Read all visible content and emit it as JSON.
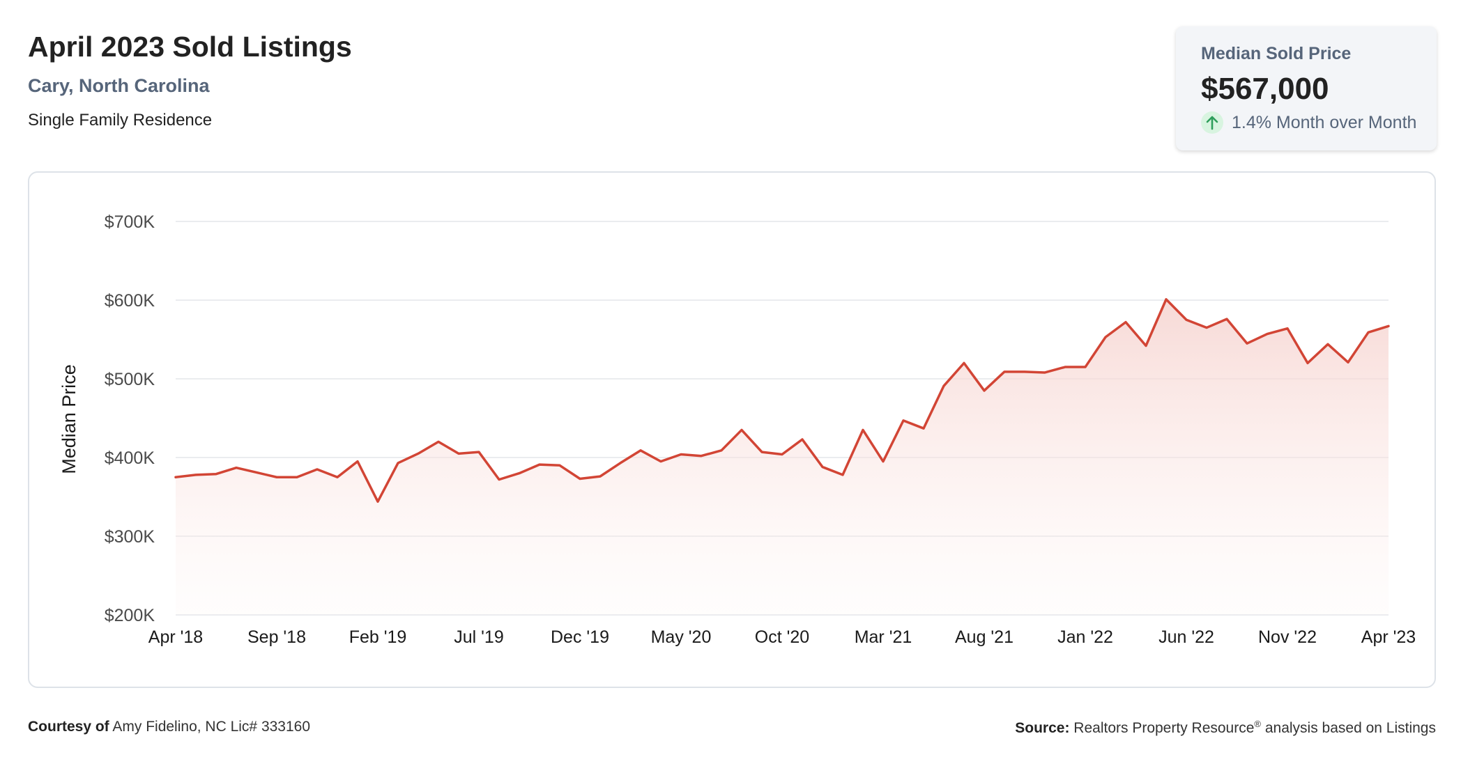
{
  "header": {
    "title": "April 2023 Sold Listings",
    "subtitle": "Cary, North Carolina",
    "property_type": "Single Family Residence"
  },
  "stat_card": {
    "label": "Median Sold Price",
    "value": "$567,000",
    "change": "1.4% Month over Month",
    "change_direction": "up",
    "change_icon": "arrow-up-icon",
    "change_color": "#2e9e5b"
  },
  "footer": {
    "courtesy_label": "Courtesy of",
    "courtesy_text": "Amy Fidelino, NC Lic# 333160",
    "source_label": "Source:",
    "source_text_1": "Realtors Property Resource",
    "source_mark": "®",
    "source_text_2": " analysis based on Listings"
  },
  "colors": {
    "line": "#d24535",
    "fill_top": "#f6d3cf",
    "gridline": "#e3e6ea",
    "axis_text": "#4a4a4a"
  },
  "chart_data": {
    "type": "area",
    "ylabel": "Median Price",
    "xlabel": "",
    "ylim": [
      200000,
      700000
    ],
    "y_ticks": [
      {
        "value": 700000,
        "label": "$700K"
      },
      {
        "value": 600000,
        "label": "$600K"
      },
      {
        "value": 500000,
        "label": "$500K"
      },
      {
        "value": 400000,
        "label": "$400K"
      },
      {
        "value": 300000,
        "label": "$300K"
      },
      {
        "value": 200000,
        "label": "$200K"
      }
    ],
    "x_tick_labels": [
      "Apr '18",
      "Sep '18",
      "Feb '19",
      "Jul '19",
      "Dec '19",
      "May '20",
      "Oct '20",
      "Mar '21",
      "Aug '21",
      "Jan '22",
      "Jun '22",
      "Nov '22",
      "Apr '23"
    ],
    "x_tick_every": 5,
    "grid": true,
    "series": [
      {
        "values": [
          375000,
          378000,
          379000,
          387000,
          381000,
          375000,
          375000,
          385000,
          375000,
          395000,
          344000,
          393000,
          405000,
          420000,
          405000,
          407000,
          372000,
          380000,
          391000,
          390000,
          373000,
          376000,
          393000,
          409000,
          395000,
          404000,
          402000,
          409000,
          435000,
          407000,
          404000,
          423000,
          388000,
          378000,
          435000,
          395000,
          447000,
          437000,
          491000,
          520000,
          485000,
          509000,
          509000,
          508000,
          515000,
          515000,
          553000,
          572000,
          542000,
          601000,
          575000,
          565000,
          576000,
          545000,
          557000,
          564000,
          520000,
          544000,
          521000,
          559000,
          567000
        ]
      }
    ]
  }
}
